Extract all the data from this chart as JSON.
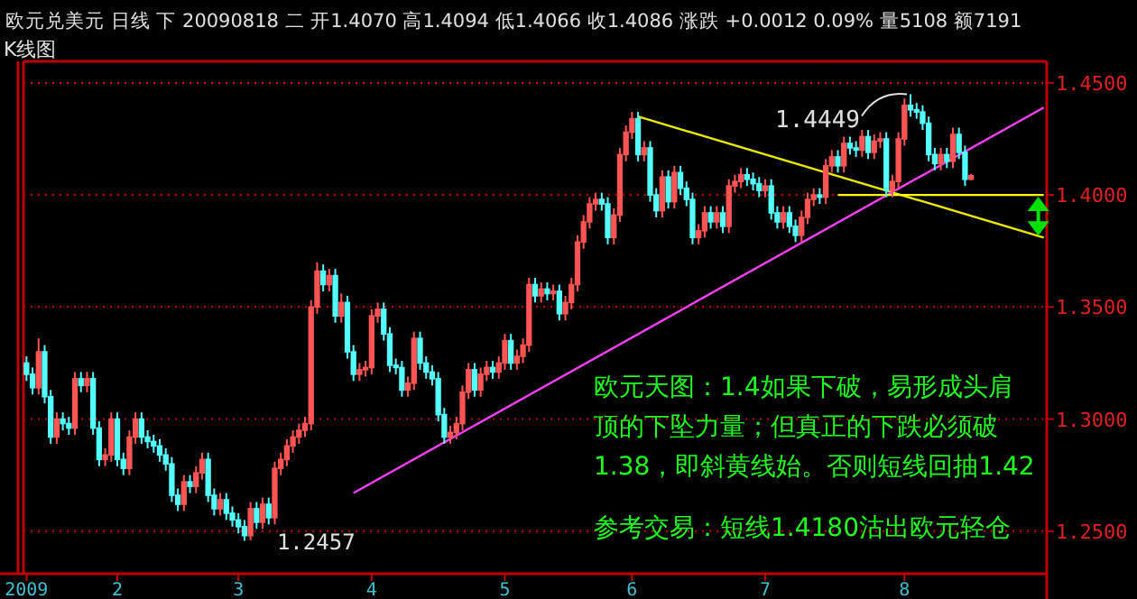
{
  "chart_data": {
    "type": "candlestick",
    "title": "欧元兑美元 日线 下 20090818 二 开1.4070 高1.4094 低1.4066 收1.4086 涨跌 +0.0012 0.09% 量5108 额7191",
    "subtitle": "K线图",
    "categories": [
      "2009",
      null,
      null,
      null,
      null,
      null,
      null,
      null,
      null,
      null,
      null,
      null,
      null,
      null,
      null,
      "2",
      null,
      null,
      null,
      null,
      null,
      null,
      null,
      null,
      null,
      null,
      null,
      null,
      null,
      null,
      null,
      null,
      null,
      null,
      null,
      "3",
      null,
      null,
      null,
      null,
      null,
      null,
      null,
      null,
      null,
      null,
      null,
      null,
      null,
      null,
      null,
      null,
      null,
      null,
      null,
      null,
      null,
      "4",
      null,
      null,
      null,
      null,
      null,
      null,
      null,
      null,
      null,
      null,
      null,
      null,
      null,
      null,
      null,
      null,
      null,
      null,
      null,
      null,
      null,
      "5",
      null,
      null,
      null,
      null,
      null,
      null,
      null,
      null,
      null,
      null,
      null,
      null,
      null,
      null,
      null,
      null,
      null,
      null,
      null,
      null,
      "6",
      null,
      null,
      null,
      null,
      null,
      null,
      null,
      null,
      null,
      null,
      null,
      null,
      null,
      null,
      null,
      null,
      null,
      null,
      null,
      null,
      null,
      "7",
      null,
      null,
      null,
      null,
      null,
      null,
      null,
      null,
      null,
      null,
      null,
      null,
      null,
      null,
      null,
      null,
      null,
      null,
      null,
      null,
      null,
      null,
      "8",
      null,
      null,
      null,
      null,
      null,
      null,
      null,
      null,
      null,
      null,
      null,
      null,
      null,
      null,
      null,
      null,
      null,
      null,
      null,
      null,
      null,
      null,
      null
    ],
    "ohlc": [
      [
        1.325,
        1.328,
        1.317,
        1.32
      ],
      [
        1.32,
        1.323,
        1.311,
        1.314
      ],
      [
        1.314,
        1.336,
        1.311,
        1.33
      ],
      [
        1.33,
        1.333,
        1.307,
        1.31
      ],
      [
        1.31,
        1.313,
        1.289,
        1.292
      ],
      [
        1.292,
        1.303,
        1.289,
        1.3
      ],
      [
        1.3,
        1.303,
        1.295,
        1.298
      ],
      [
        1.298,
        1.301,
        1.293,
        1.296
      ],
      [
        1.296,
        1.321,
        1.293,
        1.318
      ],
      [
        1.318,
        1.321,
        1.312,
        1.315
      ],
      [
        1.315,
        1.321,
        1.312,
        1.318
      ],
      [
        1.318,
        1.321,
        1.293,
        1.296
      ],
      [
        1.296,
        1.299,
        1.279,
        1.282
      ],
      [
        1.282,
        1.287,
        1.279,
        1.284
      ],
      [
        1.284,
        1.303,
        1.281,
        1.3
      ],
      [
        1.3,
        1.303,
        1.279,
        1.282
      ],
      [
        1.282,
        1.285,
        1.275,
        1.278
      ],
      [
        1.278,
        1.295,
        1.275,
        1.292
      ],
      [
        1.292,
        1.303,
        1.289,
        1.3
      ],
      [
        1.3,
        1.303,
        1.289,
        1.292
      ],
      [
        1.292,
        1.295,
        1.287,
        1.29
      ],
      [
        1.29,
        1.293,
        1.285,
        1.288
      ],
      [
        1.288,
        1.291,
        1.281,
        1.284
      ],
      [
        1.284,
        1.287,
        1.277,
        1.28
      ],
      [
        1.28,
        1.283,
        1.263,
        1.266
      ],
      [
        1.266,
        1.269,
        1.259,
        1.262
      ],
      [
        1.262,
        1.275,
        1.259,
        1.272
      ],
      [
        1.272,
        1.275,
        1.267,
        1.27
      ],
      [
        1.27,
        1.279,
        1.267,
        1.276
      ],
      [
        1.276,
        1.285,
        1.273,
        1.282
      ],
      [
        1.282,
        1.285,
        1.263,
        1.266
      ],
      [
        1.266,
        1.269,
        1.257,
        1.26
      ],
      [
        1.26,
        1.267,
        1.257,
        1.264
      ],
      [
        1.264,
        1.267,
        1.255,
        1.258
      ],
      [
        1.258,
        1.261,
        1.252,
        1.255
      ],
      [
        1.255,
        1.258,
        1.249,
        1.252
      ],
      [
        1.252,
        1.255,
        1.2457,
        1.248
      ],
      [
        1.248,
        1.263,
        1.246,
        1.26
      ],
      [
        1.26,
        1.263,
        1.251,
        1.254
      ],
      [
        1.254,
        1.265,
        1.251,
        1.262
      ],
      [
        1.262,
        1.265,
        1.253,
        1.256
      ],
      [
        1.256,
        1.281,
        1.253,
        1.278
      ],
      [
        1.278,
        1.285,
        1.275,
        1.282
      ],
      [
        1.282,
        1.291,
        1.279,
        1.288
      ],
      [
        1.288,
        1.295,
        1.285,
        1.292
      ],
      [
        1.292,
        1.298,
        1.289,
        1.295
      ],
      [
        1.295,
        1.301,
        1.292,
        1.298
      ],
      [
        1.298,
        1.353,
        1.295,
        1.35
      ],
      [
        1.35,
        1.37,
        1.347,
        1.366
      ],
      [
        1.366,
        1.369,
        1.357,
        1.36
      ],
      [
        1.36,
        1.367,
        1.357,
        1.364
      ],
      [
        1.364,
        1.367,
        1.343,
        1.346
      ],
      [
        1.346,
        1.356,
        1.343,
        1.352
      ],
      [
        1.352,
        1.355,
        1.327,
        1.33
      ],
      [
        1.33,
        1.333,
        1.317,
        1.32
      ],
      [
        1.32,
        1.325,
        1.317,
        1.322
      ],
      [
        1.322,
        1.326,
        1.319,
        1.323
      ],
      [
        1.323,
        1.349,
        1.32,
        1.346
      ],
      [
        1.346,
        1.352,
        1.343,
        1.349
      ],
      [
        1.349,
        1.352,
        1.335,
        1.338
      ],
      [
        1.338,
        1.341,
        1.321,
        1.324
      ],
      [
        1.324,
        1.327,
        1.32,
        1.323
      ],
      [
        1.323,
        1.326,
        1.31,
        1.313
      ],
      [
        1.313,
        1.319,
        1.31,
        1.316
      ],
      [
        1.316,
        1.339,
        1.313,
        1.336
      ],
      [
        1.336,
        1.339,
        1.322,
        1.325
      ],
      [
        1.325,
        1.328,
        1.318,
        1.321
      ],
      [
        1.321,
        1.324,
        1.315,
        1.318
      ],
      [
        1.318,
        1.321,
        1.299,
        1.302
      ],
      [
        1.302,
        1.305,
        1.289,
        1.292
      ],
      [
        1.292,
        1.297,
        1.289,
        1.294
      ],
      [
        1.294,
        1.301,
        1.291,
        1.298
      ],
      [
        1.298,
        1.315,
        1.295,
        1.312
      ],
      [
        1.312,
        1.325,
        1.309,
        1.322
      ],
      [
        1.322,
        1.325,
        1.31,
        1.313
      ],
      [
        1.313,
        1.323,
        1.31,
        1.32
      ],
      [
        1.32,
        1.326,
        1.317,
        1.323
      ],
      [
        1.323,
        1.326,
        1.318,
        1.321
      ],
      [
        1.321,
        1.328,
        1.318,
        1.325
      ],
      [
        1.325,
        1.338,
        1.322,
        1.335
      ],
      [
        1.335,
        1.338,
        1.322,
        1.325
      ],
      [
        1.325,
        1.331,
        1.322,
        1.328
      ],
      [
        1.328,
        1.336,
        1.325,
        1.333
      ],
      [
        1.333,
        1.363,
        1.33,
        1.36
      ],
      [
        1.36,
        1.363,
        1.352,
        1.355
      ],
      [
        1.355,
        1.361,
        1.352,
        1.358
      ],
      [
        1.358,
        1.361,
        1.353,
        1.356
      ],
      [
        1.356,
        1.36,
        1.353,
        1.357
      ],
      [
        1.357,
        1.36,
        1.344,
        1.347
      ],
      [
        1.347,
        1.355,
        1.344,
        1.352
      ],
      [
        1.352,
        1.363,
        1.349,
        1.36
      ],
      [
        1.36,
        1.382,
        1.357,
        1.379
      ],
      [
        1.379,
        1.391,
        1.376,
        1.388
      ],
      [
        1.388,
        1.399,
        1.385,
        1.396
      ],
      [
        1.396,
        1.401,
        1.393,
        1.398
      ],
      [
        1.398,
        1.401,
        1.393,
        1.396
      ],
      [
        1.396,
        1.399,
        1.378,
        1.381
      ],
      [
        1.381,
        1.394,
        1.378,
        1.391
      ],
      [
        1.391,
        1.421,
        1.388,
        1.418
      ],
      [
        1.418,
        1.431,
        1.415,
        1.428
      ],
      [
        1.428,
        1.437,
        1.425,
        1.434
      ],
      [
        1.434,
        1.437,
        1.415,
        1.418
      ],
      [
        1.418,
        1.424,
        1.415,
        1.421
      ],
      [
        1.421,
        1.424,
        1.397,
        1.4
      ],
      [
        1.4,
        1.403,
        1.39,
        1.393
      ],
      [
        1.393,
        1.411,
        1.39,
        1.408
      ],
      [
        1.408,
        1.411,
        1.394,
        1.397
      ],
      [
        1.397,
        1.413,
        1.394,
        1.41
      ],
      [
        1.41,
        1.413,
        1.4,
        1.403
      ],
      [
        1.403,
        1.406,
        1.395,
        1.398
      ],
      [
        1.398,
        1.401,
        1.378,
        1.381
      ],
      [
        1.381,
        1.387,
        1.378,
        1.384
      ],
      [
        1.384,
        1.395,
        1.381,
        1.392
      ],
      [
        1.392,
        1.395,
        1.385,
        1.388
      ],
      [
        1.388,
        1.395,
        1.385,
        1.392
      ],
      [
        1.392,
        1.395,
        1.383,
        1.386
      ],
      [
        1.386,
        1.407,
        1.383,
        1.404
      ],
      [
        1.404,
        1.409,
        1.401,
        1.406
      ],
      [
        1.406,
        1.412,
        1.403,
        1.409
      ],
      [
        1.409,
        1.412,
        1.404,
        1.407
      ],
      [
        1.407,
        1.41,
        1.402,
        1.405
      ],
      [
        1.405,
        1.408,
        1.399,
        1.402
      ],
      [
        1.402,
        1.407,
        1.399,
        1.404
      ],
      [
        1.404,
        1.407,
        1.389,
        1.392
      ],
      [
        1.392,
        1.395,
        1.385,
        1.388
      ],
      [
        1.388,
        1.395,
        1.385,
        1.392
      ],
      [
        1.392,
        1.395,
        1.383,
        1.386
      ],
      [
        1.386,
        1.389,
        1.379,
        1.382
      ],
      [
        1.382,
        1.393,
        1.379,
        1.39
      ],
      [
        1.39,
        1.401,
        1.387,
        1.398
      ],
      [
        1.398,
        1.403,
        1.395,
        1.4
      ],
      [
        1.4,
        1.403,
        1.396,
        1.399
      ],
      [
        1.399,
        1.416,
        1.396,
        1.413
      ],
      [
        1.413,
        1.42,
        1.41,
        1.417
      ],
      [
        1.417,
        1.42,
        1.41,
        1.413
      ],
      [
        1.413,
        1.426,
        1.41,
        1.423
      ],
      [
        1.423,
        1.426,
        1.418,
        1.421
      ],
      [
        1.421,
        1.424,
        1.417,
        1.42
      ],
      [
        1.42,
        1.429,
        1.417,
        1.426
      ],
      [
        1.426,
        1.429,
        1.416,
        1.419
      ],
      [
        1.419,
        1.427,
        1.416,
        1.424
      ],
      [
        1.424,
        1.428,
        1.421,
        1.425
      ],
      [
        1.425,
        1.428,
        1.399,
        1.402
      ],
      [
        1.402,
        1.409,
        1.399,
        1.406
      ],
      [
        1.406,
        1.428,
        1.403,
        1.425
      ],
      [
        1.425,
        1.443,
        1.422,
        1.44
      ],
      [
        1.44,
        1.4449,
        1.435,
        1.438
      ],
      [
        1.438,
        1.441,
        1.434,
        1.437
      ],
      [
        1.437,
        1.44,
        1.429,
        1.432
      ],
      [
        1.432,
        1.435,
        1.415,
        1.418
      ],
      [
        1.418,
        1.421,
        1.411,
        1.414
      ],
      [
        1.414,
        1.421,
        1.411,
        1.418
      ],
      [
        1.418,
        1.421,
        1.412,
        1.415
      ],
      [
        1.415,
        1.43,
        1.412,
        1.427
      ],
      [
        1.427,
        1.43,
        1.416,
        1.419
      ],
      [
        1.419,
        1.422,
        1.404,
        1.407
      ],
      [
        1.407,
        1.4094,
        1.4066,
        1.4086
      ],
      null,
      null,
      null,
      null,
      null,
      null,
      null,
      null,
      null,
      null,
      null,
      null
    ],
    "series": [
      {
        "type": "line",
        "color": "#e8e800",
        "values": [
          null,
          null,
          null,
          null,
          null,
          null,
          null,
          null,
          null,
          null,
          null,
          null,
          null,
          null,
          null,
          null,
          null,
          null,
          null,
          null,
          null,
          null,
          null,
          null,
          null,
          null,
          null,
          null,
          null,
          null,
          null,
          null,
          null,
          null,
          null,
          null,
          null,
          null,
          null,
          null,
          null,
          null,
          null,
          null,
          null,
          null,
          null,
          null,
          null,
          null,
          null,
          null,
          null,
          null,
          null,
          null,
          null,
          null,
          null,
          null,
          null,
          null,
          null,
          null,
          null,
          null,
          null,
          null,
          null,
          null,
          null,
          null,
          null,
          null,
          null,
          null,
          null,
          null,
          null,
          null,
          null,
          null,
          null,
          null,
          null,
          null,
          null,
          null,
          null,
          null,
          null,
          null,
          null,
          null,
          null,
          null,
          null,
          null,
          null,
          null,
          null,
          1.435,
          null,
          null,
          null,
          null,
          null,
          null,
          null,
          null,
          null,
          null,
          null,
          null,
          null,
          null,
          null,
          null,
          null,
          null,
          null,
          null,
          null,
          null,
          null,
          null,
          null,
          null,
          null,
          null,
          null,
          null,
          null,
          null,
          null,
          null,
          null,
          null,
          null,
          null,
          null,
          null,
          null,
          null,
          null,
          null,
          null,
          null,
          null,
          null,
          null,
          null,
          null,
          null,
          null,
          null,
          null,
          null,
          null,
          null,
          null,
          null,
          null,
          null,
          null,
          null,
          null,
          null,
          1.381
        ]
      },
      {
        "type": "line",
        "color": "#ff40ff",
        "values": [
          null,
          null,
          null,
          null,
          null,
          null,
          null,
          null,
          null,
          null,
          null,
          null,
          null,
          null,
          null,
          null,
          null,
          null,
          null,
          null,
          null,
          null,
          null,
          null,
          null,
          null,
          null,
          null,
          null,
          null,
          null,
          null,
          null,
          null,
          null,
          null,
          null,
          null,
          null,
          null,
          null,
          null,
          null,
          null,
          null,
          null,
          null,
          null,
          null,
          null,
          null,
          null,
          null,
          null,
          1.267,
          null,
          null,
          null,
          null,
          null,
          null,
          null,
          null,
          null,
          null,
          null,
          null,
          null,
          null,
          null,
          null,
          null,
          null,
          null,
          null,
          null,
          null,
          null,
          null,
          null,
          null,
          null,
          null,
          null,
          null,
          null,
          null,
          null,
          null,
          null,
          null,
          null,
          null,
          null,
          null,
          null,
          null,
          null,
          null,
          null,
          null,
          null,
          null,
          null,
          null,
          null,
          null,
          null,
          null,
          null,
          null,
          null,
          null,
          null,
          null,
          null,
          null,
          null,
          null,
          null,
          null,
          null,
          null,
          null,
          null,
          null,
          null,
          null,
          null,
          null,
          null,
          null,
          null,
          null,
          null,
          null,
          null,
          null,
          null,
          null,
          null,
          null,
          null,
          null,
          null,
          null,
          null,
          null,
          null,
          null,
          null,
          null,
          null,
          null,
          null,
          null,
          null,
          null,
          null,
          null,
          null,
          null,
          null,
          null,
          null,
          null,
          null,
          null,
          1.439
        ]
      },
      {
        "type": "line",
        "color": "#ffff00",
        "values": [
          null,
          null,
          null,
          null,
          null,
          null,
          null,
          null,
          null,
          null,
          null,
          null,
          null,
          null,
          null,
          null,
          null,
          null,
          null,
          null,
          null,
          null,
          null,
          null,
          null,
          null,
          null,
          null,
          null,
          null,
          null,
          null,
          null,
          null,
          null,
          null,
          null,
          null,
          null,
          null,
          null,
          null,
          null,
          null,
          null,
          null,
          null,
          null,
          null,
          null,
          null,
          null,
          null,
          null,
          null,
          null,
          null,
          null,
          null,
          null,
          null,
          null,
          null,
          null,
          null,
          null,
          null,
          null,
          null,
          null,
          null,
          null,
          null,
          null,
          null,
          null,
          null,
          null,
          null,
          null,
          null,
          null,
          null,
          null,
          null,
          null,
          null,
          null,
          null,
          null,
          null,
          null,
          null,
          null,
          null,
          null,
          null,
          null,
          null,
          null,
          null,
          null,
          null,
          null,
          null,
          null,
          null,
          null,
          null,
          null,
          null,
          null,
          null,
          null,
          null,
          null,
          null,
          null,
          null,
          null,
          null,
          null,
          null,
          null,
          null,
          null,
          null,
          null,
          null,
          null,
          null,
          null,
          null,
          null,
          1.4,
          null,
          null,
          null,
          null,
          null,
          null,
          null,
          null,
          null,
          null,
          null,
          null,
          null,
          null,
          null,
          null,
          null,
          null,
          null,
          null,
          null,
          null,
          null,
          null,
          null,
          null,
          null,
          null,
          null,
          null,
          null,
          null,
          null,
          1.4
        ]
      }
    ],
    "ylim": [
      1.231,
      1.458
    ],
    "yticks": [
      {
        "value": 1.25,
        "label": "1.2500"
      },
      {
        "value": 1.3,
        "label": "1.3000"
      },
      {
        "value": 1.35,
        "label": "1.3500"
      },
      {
        "value": 1.4,
        "label": "1.4000"
      },
      {
        "value": 1.45,
        "label": "1.4500"
      }
    ],
    "grid": "y",
    "annotations": [
      "1.4449",
      "1.2457",
      "欧元天图：1.4如果下破，易形成头肩",
      "顶的下坠力量；但真正的下跌必须破",
      "1.38，即斜黄线始。否则短线回抽1.42",
      "参考交易：短线1.4180沽出欧元轻仓"
    ]
  }
}
